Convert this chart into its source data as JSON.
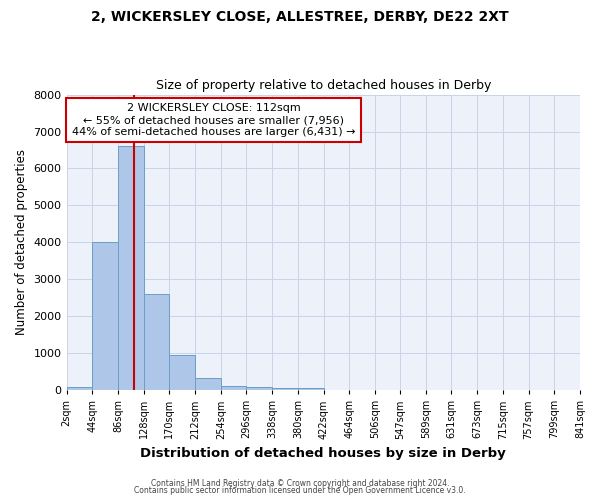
{
  "title1": "2, WICKERSLEY CLOSE, ALLESTREE, DERBY, DE22 2XT",
  "title2": "Size of property relative to detached houses in Derby",
  "xlabel": "Distribution of detached houses by size in Derby",
  "ylabel": "Number of detached properties",
  "bin_edges": [
    2,
    44,
    86,
    128,
    170,
    212,
    254,
    296,
    338,
    380,
    422,
    464,
    506,
    547,
    589,
    631,
    673,
    715,
    757,
    799,
    841
  ],
  "bar_heights": [
    80,
    4000,
    6600,
    2600,
    950,
    320,
    120,
    80,
    50,
    50,
    0,
    0,
    0,
    0,
    0,
    0,
    0,
    0,
    0,
    0
  ],
  "bar_color": "#aec6e8",
  "bar_edge_color": "#6a9fc8",
  "property_size": 112,
  "vline_color": "#cc0000",
  "ylim": [
    0,
    8000
  ],
  "yticks": [
    0,
    1000,
    2000,
    3000,
    4000,
    5000,
    6000,
    7000,
    8000
  ],
  "annotation_title": "2 WICKERSLEY CLOSE: 112sqm",
  "annotation_line1": "← 55% of detached houses are smaller (7,956)",
  "annotation_line2": "44% of semi-detached houses are larger (6,431) →",
  "annotation_box_color": "#cc0000",
  "grid_color": "#c8d4e8",
  "background_color": "#edf2fa",
  "footer1": "Contains HM Land Registry data © Crown copyright and database right 2024.",
  "footer2": "Contains public sector information licensed under the Open Government Licence v3.0.",
  "tick_labels": [
    "2sqm",
    "44sqm",
    "86sqm",
    "128sqm",
    "170sqm",
    "212sqm",
    "254sqm",
    "296sqm",
    "338sqm",
    "380sqm",
    "422sqm",
    "464sqm",
    "506sqm",
    "547sqm",
    "589sqm",
    "631sqm",
    "673sqm",
    "715sqm",
    "757sqm",
    "799sqm",
    "841sqm"
  ]
}
